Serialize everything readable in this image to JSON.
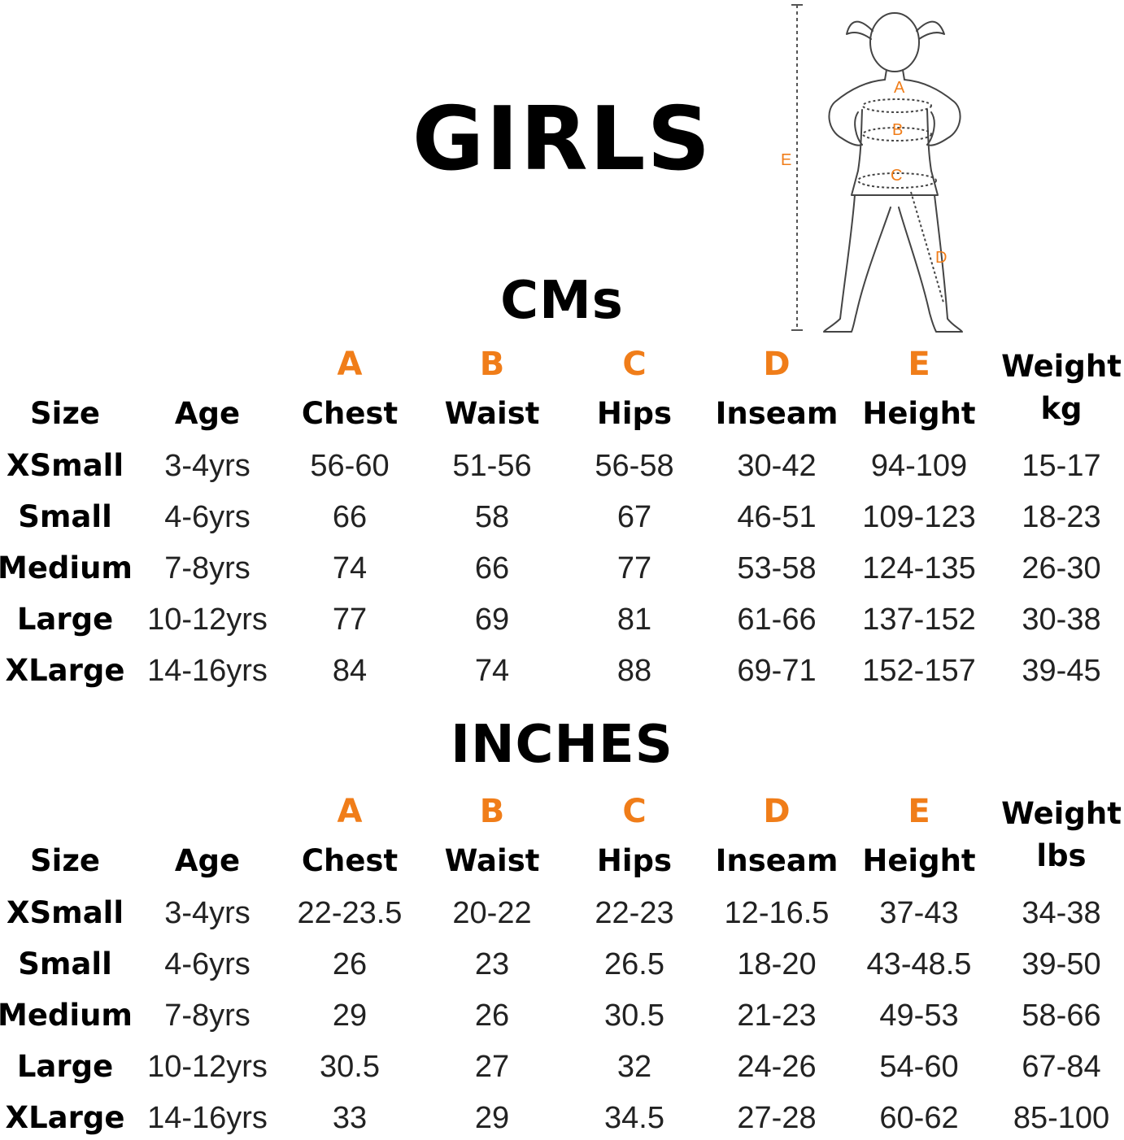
{
  "title": "GIRLS",
  "figure": {
    "labels": [
      "A",
      "B",
      "C",
      "D",
      "E"
    ],
    "accent_color": "#f07d19"
  },
  "columns": {
    "letters": [
      "A",
      "B",
      "C",
      "D",
      "E"
    ],
    "headers": [
      "Size",
      "Age",
      "Chest",
      "Waist",
      "Hips",
      "Inseam",
      "Height",
      "Weight"
    ]
  },
  "cm_section": {
    "title": "CMs",
    "weight_unit": "kg",
    "rows": [
      {
        "size": "XSmall",
        "age": "3-4yrs",
        "chest": "56-60",
        "waist": "51-56",
        "hips": "56-58",
        "inseam": "30-42",
        "height": "94-109",
        "weight": "15-17"
      },
      {
        "size": "Small",
        "age": "4-6yrs",
        "chest": "66",
        "waist": "58",
        "hips": "67",
        "inseam": "46-51",
        "height": "109-123",
        "weight": "18-23"
      },
      {
        "size": "Medium",
        "age": "7-8yrs",
        "chest": "74",
        "waist": "66",
        "hips": "77",
        "inseam": "53-58",
        "height": "124-135",
        "weight": "26-30"
      },
      {
        "size": "Large",
        "age": "10-12yrs",
        "chest": "77",
        "waist": "69",
        "hips": "81",
        "inseam": "61-66",
        "height": "137-152",
        "weight": "30-38"
      },
      {
        "size": "XLarge",
        "age": "14-16yrs",
        "chest": "84",
        "waist": "74",
        "hips": "88",
        "inseam": "69-71",
        "height": "152-157",
        "weight": "39-45"
      }
    ]
  },
  "inch_section": {
    "title": "INCHES",
    "weight_unit": "lbs",
    "rows": [
      {
        "size": "XSmall",
        "age": "3-4yrs",
        "chest": "22-23.5",
        "waist": "20-22",
        "hips": "22-23",
        "inseam": "12-16.5",
        "height": "37-43",
        "weight": "34-38"
      },
      {
        "size": "Small",
        "age": "4-6yrs",
        "chest": "26",
        "waist": "23",
        "hips": "26.5",
        "inseam": "18-20",
        "height": "43-48.5",
        "weight": "39-50"
      },
      {
        "size": "Medium",
        "age": "7-8yrs",
        "chest": "29",
        "waist": "26",
        "hips": "30.5",
        "inseam": "21-23",
        "height": "49-53",
        "weight": "58-66"
      },
      {
        "size": "Large",
        "age": "10-12yrs",
        "chest": "30.5",
        "waist": "27",
        "hips": "32",
        "inseam": "24-26",
        "height": "54-60",
        "weight": "67-84"
      },
      {
        "size": "XLarge",
        "age": "14-16yrs",
        "chest": "33",
        "waist": "29",
        "hips": "34.5",
        "inseam": "27-28",
        "height": "60-62",
        "weight": "85-100"
      }
    ]
  }
}
